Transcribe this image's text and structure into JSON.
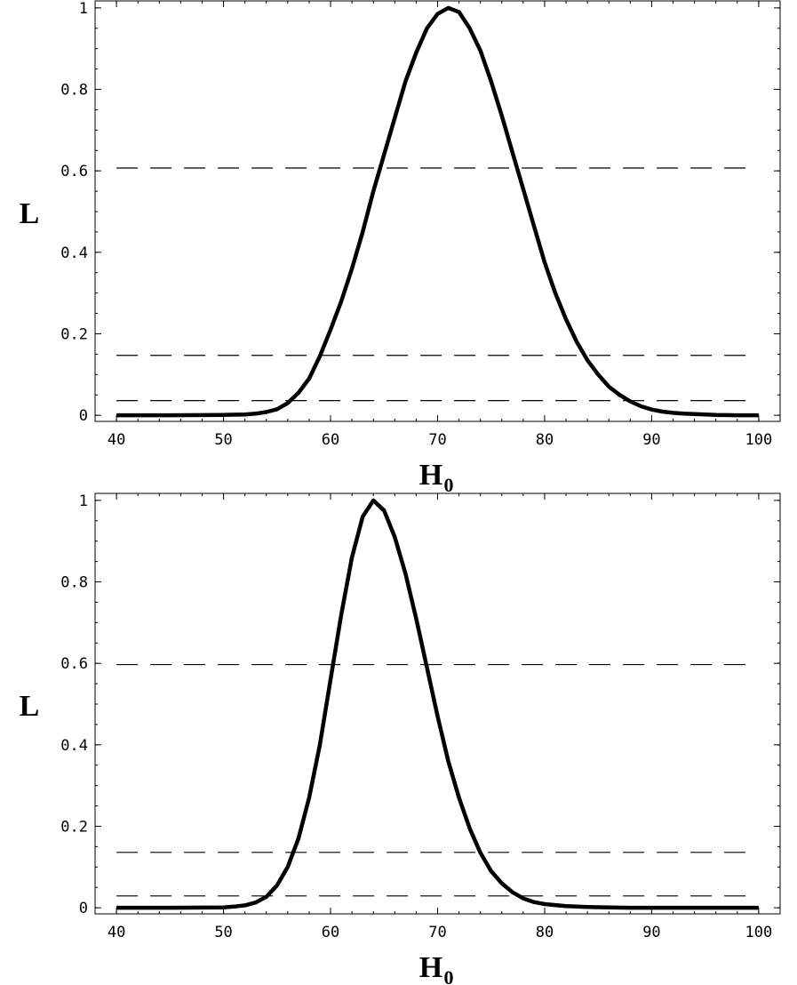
{
  "chart_data": [
    {
      "type": "line",
      "xlabel": "H",
      "xlabel_sub": "0",
      "ylabel": "L",
      "xlim": [
        38,
        102
      ],
      "ylim": [
        -0.015,
        1.015
      ],
      "xticks": [
        40,
        50,
        60,
        70,
        80,
        90,
        100
      ],
      "xtick_labels": [
        "40",
        "50",
        "60",
        "70",
        "80",
        "90",
        "100"
      ],
      "yticks": [
        0,
        0.2,
        0.4,
        0.6,
        0.8,
        1
      ],
      "ytick_labels": [
        "0",
        "0.2",
        "0.4",
        "0.6",
        "0.8",
        "1"
      ],
      "hlines": [
        0.607,
        0.147,
        0.036
      ],
      "hlines_xrange": [
        40,
        98
      ],
      "series": [
        {
          "x": [
            40,
            45,
            50,
            52,
            53,
            54,
            55,
            56,
            57,
            58,
            59,
            60,
            61,
            62,
            63,
            64,
            65,
            66,
            67,
            68,
            69,
            70,
            71,
            72,
            73,
            74,
            75,
            76,
            77,
            78,
            79,
            80,
            81,
            82,
            83,
            84,
            85,
            86,
            87,
            88,
            89,
            90,
            91,
            92,
            93,
            94,
            95,
            96,
            98,
            100
          ],
          "y": [
            0,
            0,
            0.001,
            0.002,
            0.004,
            0.008,
            0.015,
            0.03,
            0.055,
            0.09,
            0.145,
            0.21,
            0.28,
            0.36,
            0.45,
            0.55,
            0.64,
            0.73,
            0.82,
            0.89,
            0.95,
            0.985,
            1.0,
            0.99,
            0.95,
            0.895,
            0.82,
            0.735,
            0.645,
            0.555,
            0.465,
            0.375,
            0.3,
            0.235,
            0.18,
            0.135,
            0.1,
            0.07,
            0.05,
            0.034,
            0.022,
            0.014,
            0.009,
            0.006,
            0.004,
            0.003,
            0.002,
            0.001,
            0,
            0
          ]
        }
      ]
    },
    {
      "type": "line",
      "xlabel": "H",
      "xlabel_sub": "0",
      "ylabel": "L",
      "xlim": [
        38,
        102
      ],
      "ylim": [
        -0.015,
        1.015
      ],
      "xticks": [
        40,
        50,
        60,
        70,
        80,
        90,
        100
      ],
      "xtick_labels": [
        "40",
        "50",
        "60",
        "70",
        "80",
        "90",
        "100"
      ],
      "yticks": [
        0,
        0.2,
        0.4,
        0.6,
        0.8,
        1
      ],
      "ytick_labels": [
        "0",
        "0.2",
        "0.4",
        "0.6",
        "0.8",
        "1"
      ],
      "hlines": [
        0.597,
        0.136,
        0.029
      ],
      "hlines_xrange": [
        40,
        98
      ],
      "series": [
        {
          "x": [
            40,
            45,
            50,
            51,
            52,
            53,
            54,
            55,
            56,
            57,
            58,
            59,
            60,
            61,
            62,
            63,
            64,
            65,
            66,
            67,
            68,
            69,
            70,
            71,
            72,
            73,
            74,
            75,
            76,
            77,
            78,
            79,
            80,
            82,
            84,
            86,
            88,
            90,
            95,
            100
          ],
          "y": [
            0,
            0,
            0.001,
            0.003,
            0.006,
            0.013,
            0.027,
            0.055,
            0.1,
            0.17,
            0.27,
            0.4,
            0.56,
            0.72,
            0.86,
            0.96,
            1.0,
            0.975,
            0.91,
            0.82,
            0.71,
            0.59,
            0.47,
            0.36,
            0.27,
            0.195,
            0.135,
            0.09,
            0.06,
            0.038,
            0.023,
            0.014,
            0.009,
            0.004,
            0.002,
            0.001,
            0,
            0,
            0,
            0
          ]
        }
      ]
    }
  ]
}
